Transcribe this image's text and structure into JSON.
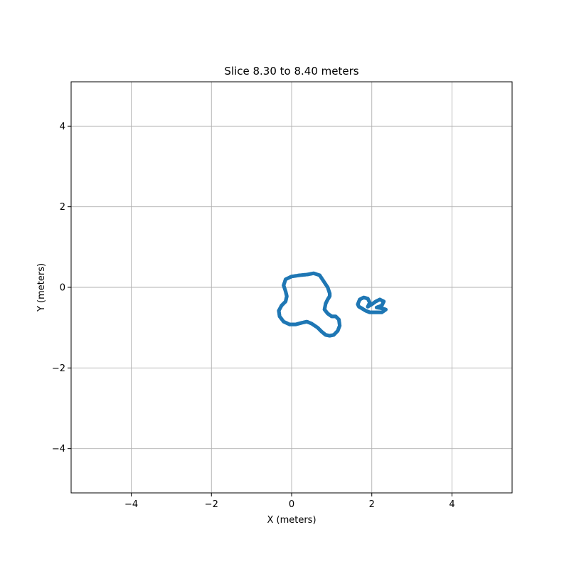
{
  "chart_data": {
    "type": "scatter",
    "title": "Slice 8.30 to 8.40 meters",
    "xlabel": "X (meters)",
    "ylabel": "Y (meters)",
    "xlim": [
      -5.5,
      5.5
    ],
    "ylim": [
      -5.1,
      5.1
    ],
    "xticks": [
      -4,
      -2,
      0,
      2,
      4
    ],
    "yticks": [
      -4,
      -2,
      0,
      2,
      4
    ],
    "xtick_labels": [
      "−4",
      "−2",
      "0",
      "2",
      "4"
    ],
    "ytick_labels": [
      "−4",
      "−2",
      "0",
      "2",
      "4"
    ],
    "grid": true,
    "point_color": "#1f77b4",
    "series": [
      {
        "points": [
          [
            -0.15,
            -0.1
          ],
          [
            -0.2,
            0.05
          ],
          [
            -0.15,
            0.2
          ],
          [
            0.0,
            0.27
          ],
          [
            0.2,
            0.3
          ],
          [
            0.4,
            0.32
          ],
          [
            0.55,
            0.35
          ],
          [
            0.7,
            0.3
          ],
          [
            0.8,
            0.15
          ],
          [
            0.9,
            0.0
          ],
          [
            0.95,
            -0.15
          ],
          [
            0.95,
            -0.22
          ],
          [
            0.9,
            -0.3
          ],
          [
            0.85,
            -0.4
          ],
          [
            0.82,
            -0.55
          ],
          [
            0.9,
            -0.65
          ],
          [
            1.0,
            -0.72
          ],
          [
            1.1,
            -0.72
          ],
          [
            1.18,
            -0.8
          ],
          [
            1.2,
            -0.95
          ],
          [
            1.15,
            -1.08
          ],
          [
            1.05,
            -1.18
          ],
          [
            0.95,
            -1.2
          ],
          [
            0.85,
            -1.18
          ],
          [
            0.75,
            -1.1
          ],
          [
            0.65,
            -1.0
          ],
          [
            0.5,
            -0.9
          ],
          [
            0.38,
            -0.85
          ],
          [
            0.25,
            -0.88
          ],
          [
            0.1,
            -0.92
          ],
          [
            -0.05,
            -0.92
          ],
          [
            -0.2,
            -0.85
          ],
          [
            -0.3,
            -0.72
          ],
          [
            -0.32,
            -0.58
          ],
          [
            -0.25,
            -0.45
          ],
          [
            -0.15,
            -0.35
          ],
          [
            -0.12,
            -0.22
          ]
        ]
      },
      {
        "points": [
          [
            1.65,
            -0.42
          ],
          [
            1.7,
            -0.3
          ],
          [
            1.8,
            -0.25
          ],
          [
            1.9,
            -0.28
          ],
          [
            1.95,
            -0.38
          ],
          [
            1.9,
            -0.48
          ],
          [
            2.0,
            -0.42
          ],
          [
            2.1,
            -0.35
          ],
          [
            2.2,
            -0.3
          ],
          [
            2.3,
            -0.35
          ],
          [
            2.25,
            -0.45
          ],
          [
            2.12,
            -0.5
          ],
          [
            2.25,
            -0.52
          ],
          [
            2.35,
            -0.55
          ],
          [
            2.25,
            -0.62
          ],
          [
            2.1,
            -0.62
          ],
          [
            1.95,
            -0.62
          ],
          [
            1.85,
            -0.58
          ],
          [
            1.75,
            -0.52
          ],
          [
            1.68,
            -0.48
          ]
        ]
      }
    ]
  }
}
